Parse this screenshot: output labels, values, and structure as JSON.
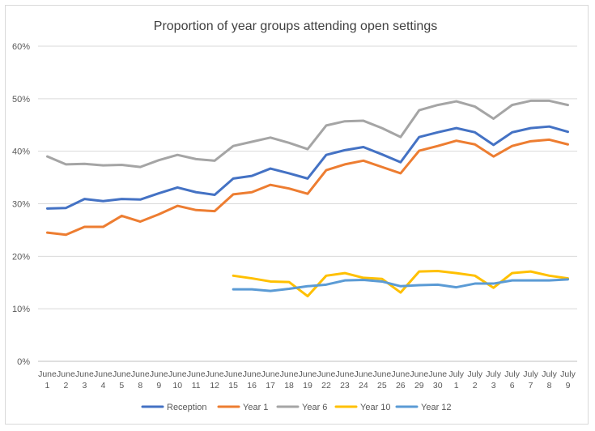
{
  "chart_data": {
    "type": "line",
    "title": "Proportion of year groups attending open settings",
    "xlabel": "",
    "ylabel": "",
    "ylim": [
      0,
      60
    ],
    "y_ticks": [
      "0%",
      "10%",
      "20%",
      "30%",
      "40%",
      "50%",
      "60%"
    ],
    "grid": true,
    "legend_position": "bottom",
    "categories": [
      [
        "June",
        "1"
      ],
      [
        "June",
        "2"
      ],
      [
        "June",
        "3"
      ],
      [
        "June",
        "4"
      ],
      [
        "June",
        "5"
      ],
      [
        "June",
        "8"
      ],
      [
        "June",
        "9"
      ],
      [
        "June",
        "10"
      ],
      [
        "June",
        "11"
      ],
      [
        "June",
        "12"
      ],
      [
        "June",
        "15"
      ],
      [
        "June",
        "16"
      ],
      [
        "June",
        "17"
      ],
      [
        "June",
        "18"
      ],
      [
        "June",
        "19"
      ],
      [
        "June",
        "22"
      ],
      [
        "June",
        "23"
      ],
      [
        "June",
        "24"
      ],
      [
        "June",
        "25"
      ],
      [
        "June",
        "26"
      ],
      [
        "June",
        "29"
      ],
      [
        "June",
        "30"
      ],
      [
        "July",
        "1"
      ],
      [
        "July",
        "2"
      ],
      [
        "July",
        "3"
      ],
      [
        "July",
        "6"
      ],
      [
        "July",
        "7"
      ],
      [
        "July",
        "8"
      ],
      [
        "July",
        "9"
      ]
    ],
    "series": [
      {
        "name": "Reception",
        "color": "#4472c4",
        "values": [
          29.1,
          29.2,
          30.9,
          30.5,
          30.9,
          30.8,
          32.0,
          33.1,
          32.2,
          31.7,
          34.8,
          35.3,
          36.7,
          35.8,
          34.8,
          39.3,
          40.2,
          40.8,
          39.4,
          37.9,
          42.7,
          43.6,
          44.4,
          43.6,
          41.2,
          43.6,
          44.4,
          44.7,
          43.7
        ]
      },
      {
        "name": "Year 1",
        "color": "#ed7d31",
        "values": [
          24.5,
          24.1,
          25.6,
          25.6,
          27.7,
          26.6,
          28.0,
          29.6,
          28.8,
          28.6,
          31.8,
          32.2,
          33.6,
          32.9,
          31.9,
          36.4,
          37.5,
          38.2,
          37.0,
          35.8,
          40.1,
          41.0,
          42.0,
          41.3,
          39.0,
          41.0,
          41.9,
          42.2,
          41.3
        ]
      },
      {
        "name": "Year 6",
        "color": "#a5a5a5",
        "values": [
          39.0,
          37.5,
          37.6,
          37.3,
          37.4,
          37.0,
          38.3,
          39.3,
          38.5,
          38.2,
          41.0,
          41.8,
          42.6,
          41.6,
          40.4,
          44.9,
          45.7,
          45.8,
          44.4,
          42.7,
          47.8,
          48.8,
          49.5,
          48.5,
          46.2,
          48.8,
          49.6,
          49.6,
          48.8
        ]
      },
      {
        "name": "Year 10",
        "color": "#ffc000",
        "values": [
          null,
          null,
          null,
          null,
          null,
          null,
          null,
          null,
          null,
          null,
          16.3,
          15.8,
          15.2,
          15.1,
          12.4,
          16.3,
          16.8,
          15.9,
          15.7,
          13.1,
          17.1,
          17.2,
          16.8,
          16.3,
          14.0,
          16.8,
          17.1,
          16.3,
          15.8
        ]
      },
      {
        "name": "Year 12",
        "color": "#5b9bd5",
        "values": [
          null,
          null,
          null,
          null,
          null,
          null,
          null,
          null,
          null,
          null,
          13.7,
          13.7,
          13.4,
          13.8,
          14.3,
          14.6,
          15.4,
          15.5,
          15.2,
          14.3,
          14.5,
          14.6,
          14.1,
          14.8,
          14.8,
          15.4,
          15.4,
          15.4,
          15.6
        ]
      }
    ]
  }
}
